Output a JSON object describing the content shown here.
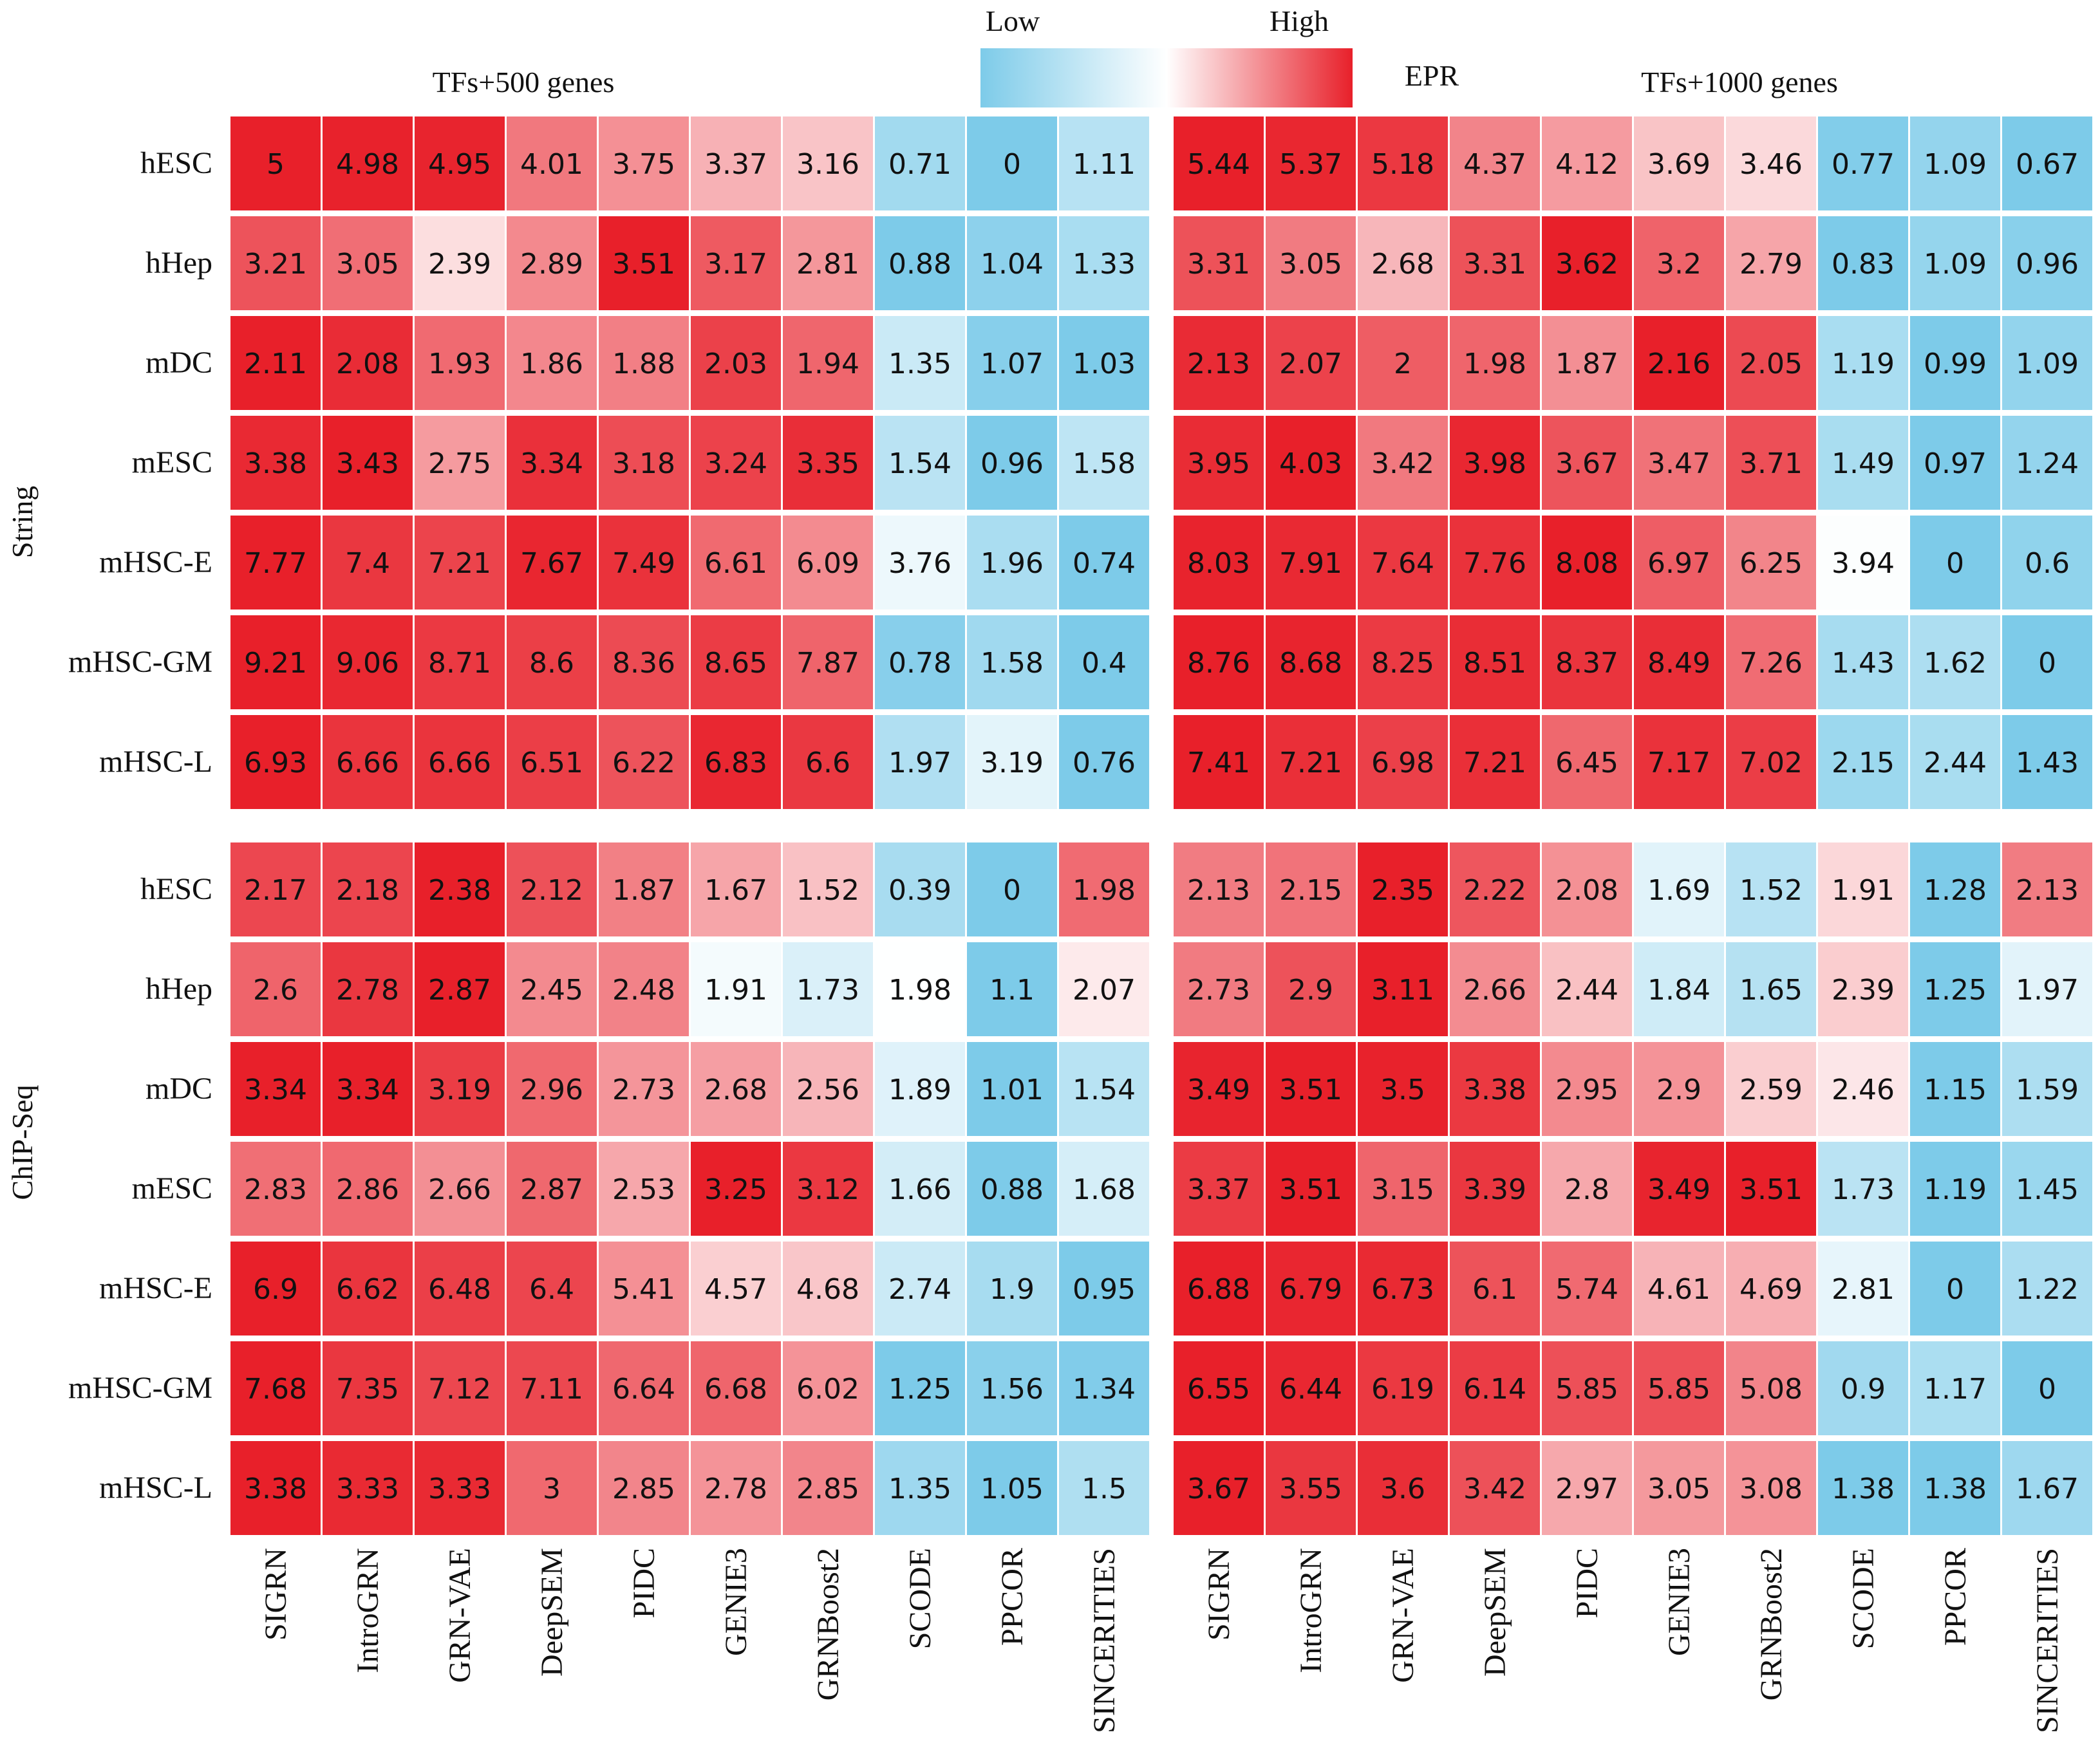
{
  "chart_data": {
    "type": "heatmap",
    "metric": "EPR",
    "colorbar": {
      "low_label": "Low",
      "high_label": "High",
      "title": "EPR",
      "low_color": "#7dcbe9",
      "mid_color": "#ffffff",
      "high_color": "#e8202a"
    },
    "methods": [
      "SIGRN",
      "IntroGRN",
      "GRN-VAE",
      "DeepSEM",
      "PIDC",
      "GENIE3",
      "GRNBoost2",
      "SCODE",
      "PPCOR",
      "SINCERITIES"
    ],
    "datasets": [
      "hESC",
      "hHep",
      "mDC",
      "mESC",
      "mHSC-E",
      "mHSC-GM",
      "mHSC-L"
    ],
    "panel_titles": [
      "TFs+500 genes",
      "TFs+1000 genes"
    ],
    "row_groups": [
      "String",
      "ChIP-Seq"
    ],
    "values": {
      "String": {
        "TFs+500 genes": [
          [
            5,
            4.98,
            4.95,
            4.01,
            3.75,
            3.37,
            3.16,
            0.71,
            0,
            1.11
          ],
          [
            3.21,
            3.05,
            2.39,
            2.89,
            3.51,
            3.17,
            2.81,
            0.88,
            1.04,
            1.33
          ],
          [
            2.11,
            2.08,
            1.93,
            1.86,
            1.88,
            2.03,
            1.94,
            1.35,
            1.07,
            1.03
          ],
          [
            3.38,
            3.43,
            2.75,
            3.34,
            3.18,
            3.24,
            3.35,
            1.54,
            0.96,
            1.58
          ],
          [
            7.77,
            7.4,
            7.21,
            7.67,
            7.49,
            6.61,
            6.09,
            3.76,
            1.96,
            0.74
          ],
          [
            9.21,
            9.06,
            8.71,
            8.6,
            8.36,
            8.65,
            7.87,
            0.78,
            1.58,
            0.4
          ],
          [
            6.93,
            6.66,
            6.66,
            6.51,
            6.22,
            6.83,
            6.6,
            1.97,
            3.19,
            0.76
          ]
        ],
        "TFs+1000 genes": [
          [
            5.44,
            5.37,
            5.18,
            4.37,
            4.12,
            3.69,
            3.46,
            0.77,
            1.09,
            0.67
          ],
          [
            3.31,
            3.05,
            2.68,
            3.31,
            3.62,
            3.2,
            2.79,
            0.83,
            1.09,
            0.96
          ],
          [
            2.13,
            2.07,
            2,
            1.98,
            1.87,
            2.16,
            2.05,
            1.19,
            0.99,
            1.09
          ],
          [
            3.95,
            4.03,
            3.42,
            3.98,
            3.67,
            3.47,
            3.71,
            1.49,
            0.97,
            1.24
          ],
          [
            8.03,
            7.91,
            7.64,
            7.76,
            8.08,
            6.97,
            6.25,
            3.94,
            0,
            0.6
          ],
          [
            8.76,
            8.68,
            8.25,
            8.51,
            8.37,
            8.49,
            7.26,
            1.43,
            1.62,
            0
          ],
          [
            7.41,
            7.21,
            6.98,
            7.21,
            6.45,
            7.17,
            7.02,
            2.15,
            2.44,
            1.43
          ]
        ]
      },
      "ChIP-Seq": {
        "TFs+500 genes": [
          [
            2.17,
            2.18,
            2.38,
            2.12,
            1.87,
            1.67,
            1.52,
            0.39,
            0,
            1.98
          ],
          [
            2.6,
            2.78,
            2.87,
            2.45,
            2.48,
            1.91,
            1.73,
            1.98,
            1.1,
            2.07
          ],
          [
            3.34,
            3.34,
            3.19,
            2.96,
            2.73,
            2.68,
            2.56,
            1.89,
            1.01,
            1.54
          ],
          [
            2.83,
            2.86,
            2.66,
            2.87,
            2.53,
            3.25,
            3.12,
            1.66,
            0.88,
            1.68
          ],
          [
            6.9,
            6.62,
            6.48,
            6.4,
            5.41,
            4.57,
            4.68,
            2.74,
            1.9,
            0.95
          ],
          [
            7.68,
            7.35,
            7.12,
            7.11,
            6.64,
            6.68,
            6.02,
            1.25,
            1.56,
            1.34
          ],
          [
            3.38,
            3.33,
            3.33,
            3,
            2.85,
            2.78,
            2.85,
            1.35,
            1.05,
            1.5
          ]
        ],
        "TFs+1000 genes": [
          [
            2.13,
            2.15,
            2.35,
            2.22,
            2.08,
            1.69,
            1.52,
            1.91,
            1.28,
            2.13
          ],
          [
            2.73,
            2.9,
            3.11,
            2.66,
            2.44,
            1.84,
            1.65,
            2.39,
            1.25,
            1.97
          ],
          [
            3.49,
            3.51,
            3.5,
            3.38,
            2.95,
            2.9,
            2.59,
            2.46,
            1.15,
            1.59
          ],
          [
            3.37,
            3.51,
            3.15,
            3.39,
            2.8,
            3.49,
            3.51,
            1.73,
            1.19,
            1.45
          ],
          [
            6.88,
            6.79,
            6.73,
            6.1,
            5.74,
            4.61,
            4.69,
            2.81,
            0,
            1.22
          ],
          [
            6.55,
            6.44,
            6.19,
            6.14,
            5.85,
            5.85,
            5.08,
            0.9,
            1.17,
            0
          ],
          [
            3.67,
            3.55,
            3.6,
            3.42,
            2.97,
            3.05,
            3.08,
            1.38,
            1.38,
            1.67
          ]
        ]
      }
    }
  }
}
